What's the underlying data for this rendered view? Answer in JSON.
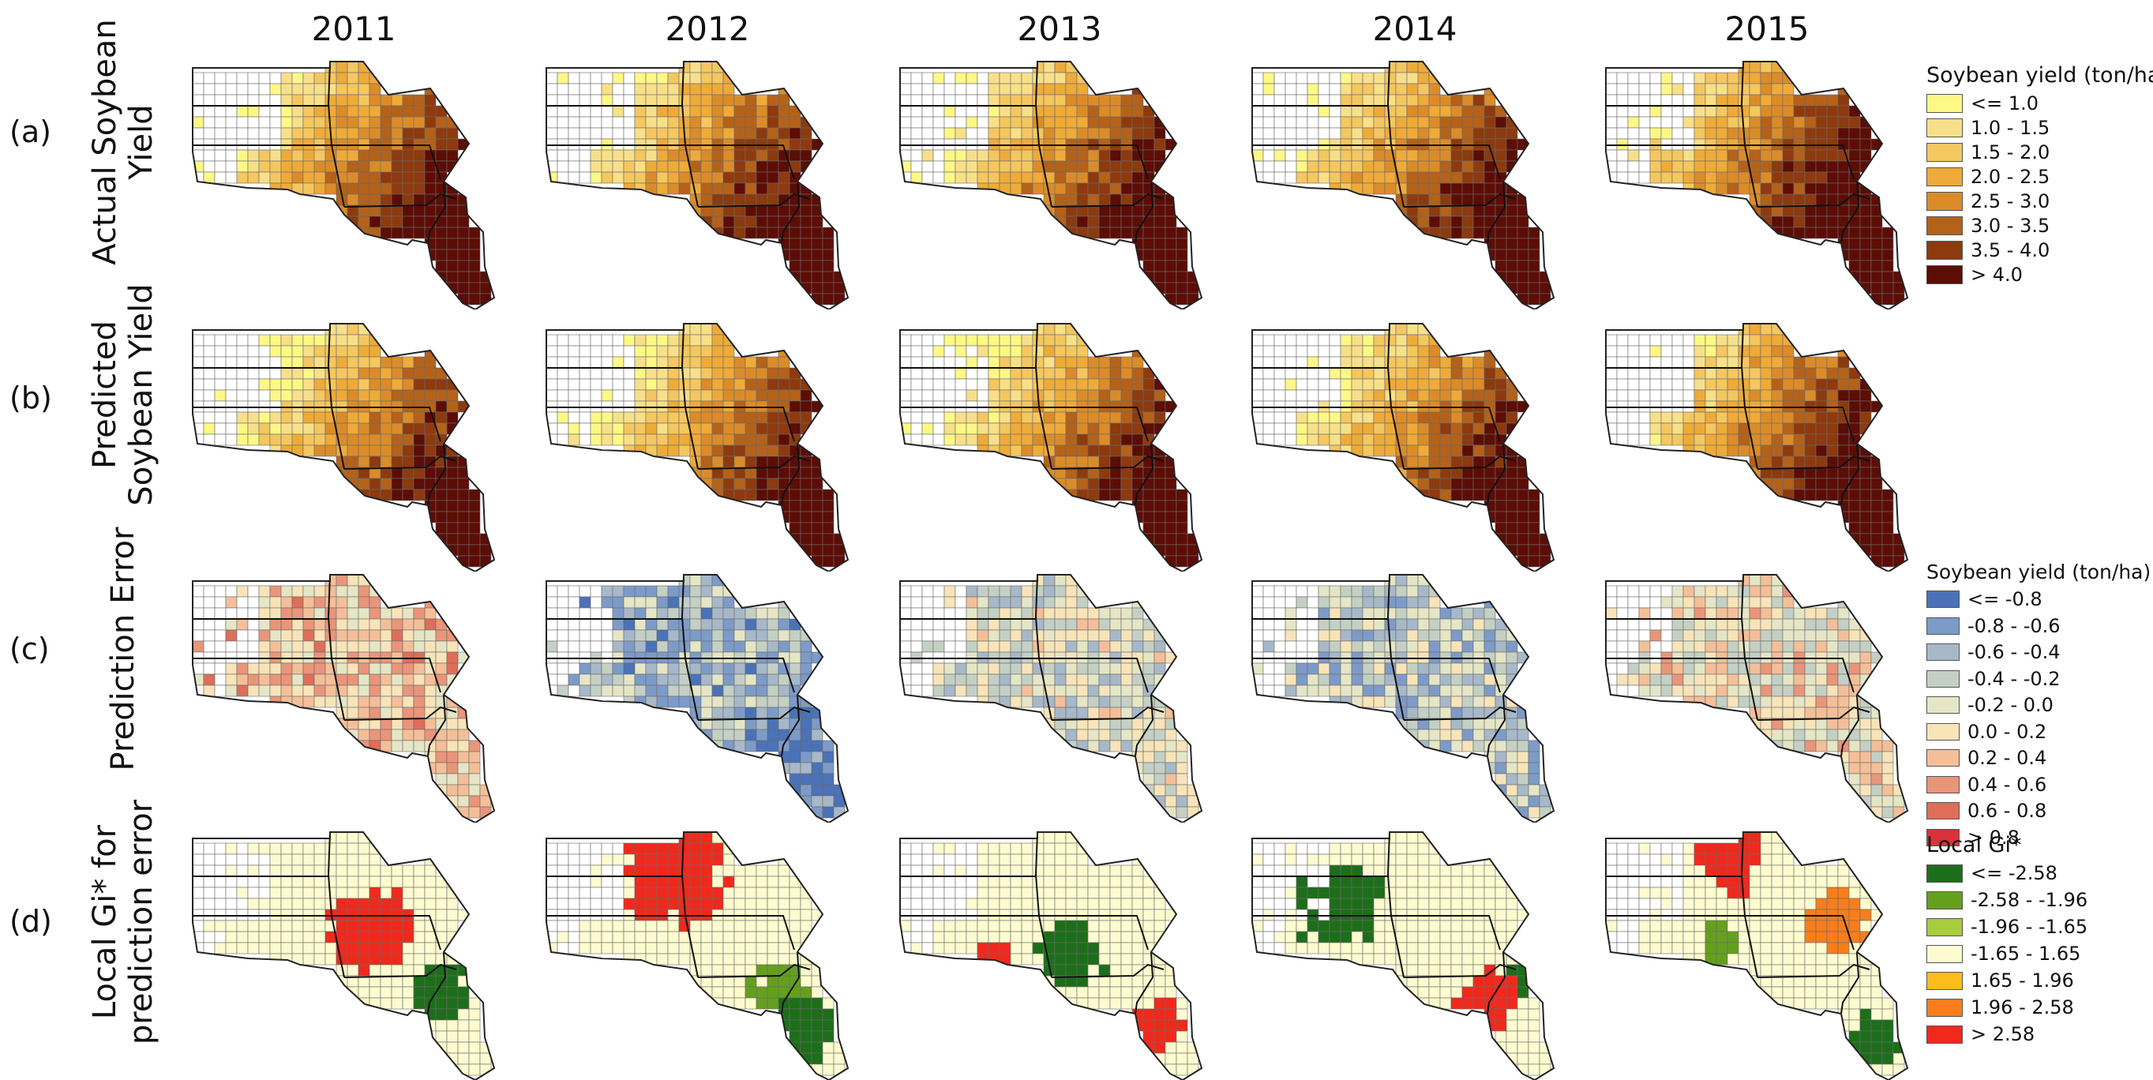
{
  "years": [
    "2011",
    "2012",
    "2013",
    "2014",
    "2015"
  ],
  "rows": [
    {
      "label": "(a)",
      "title_lines": [
        "Actual Soybean",
        "Yield"
      ],
      "legend": "yield"
    },
    {
      "label": "(b)",
      "title_lines": [
        "Predicted",
        "Soybean Yield"
      ],
      "legend": "yield"
    },
    {
      "label": "(c)",
      "title_lines": [
        "Prediction Error"
      ],
      "legend": "error"
    },
    {
      "label": "(d)",
      "title_lines": [
        "Local Gi* for",
        "prediction error"
      ],
      "legend": "gi"
    }
  ],
  "legends": {
    "yield": {
      "title": "Soybean yield (ton/ha)",
      "items": [
        {
          "label": "<= 1.0",
          "color": "#fdf886"
        },
        {
          "label": "1.0 - 1.5",
          "color": "#f8e08a"
        },
        {
          "label": "1.5 - 2.0",
          "color": "#f4c760"
        },
        {
          "label": "2.0 - 2.5",
          "color": "#eeab3a"
        },
        {
          "label": "2.5 - 3.0",
          "color": "#db8c2a"
        },
        {
          "label": "3.0 - 3.5",
          "color": "#b4621a"
        },
        {
          "label": "3.5 - 4.0",
          "color": "#8c3a0e"
        },
        {
          "label": "> 4.0",
          "color": "#5c0d06"
        }
      ]
    },
    "error": {
      "title": "Soybean yield (ton/ha)",
      "items": [
        {
          "label": "<= -0.8",
          "color": "#4a72b8"
        },
        {
          "label": "-0.8 - -0.6",
          "color": "#7d9bc8"
        },
        {
          "label": "-0.6 - -0.4",
          "color": "#a7b8c9"
        },
        {
          "label": "-0.4 - -0.2",
          "color": "#c4d0c4"
        },
        {
          "label": "-0.2 - 0.0",
          "color": "#e5e6c6"
        },
        {
          "label": "0.0 - 0.2",
          "color": "#f8e4b8"
        },
        {
          "label": "0.2 - 0.4",
          "color": "#f4bf98"
        },
        {
          "label": "0.4 - 0.6",
          "color": "#e9957a"
        },
        {
          "label": "0.6 - 0.8",
          "color": "#de6e5a"
        },
        {
          "label": "> 0.8",
          "color": "#d8333a"
        }
      ]
    },
    "gi": {
      "title": "Local Gi*",
      "items": [
        {
          "label": "<= -2.58",
          "color": "#1d6e1a"
        },
        {
          "label": "-2.58 - -1.96",
          "color": "#64a01e"
        },
        {
          "label": "-1.96 - -1.65",
          "color": "#a7cc3c"
        },
        {
          "label": "-1.65 - 1.65",
          "color": "#fdfbcf"
        },
        {
          "label": "1.65 - 1.96",
          "color": "#fcbc1c"
        },
        {
          "label": "1.96 - 2.58",
          "color": "#f87d1c"
        },
        {
          "label": "> 2.58",
          "color": "#f0291c"
        }
      ]
    }
  }
}
